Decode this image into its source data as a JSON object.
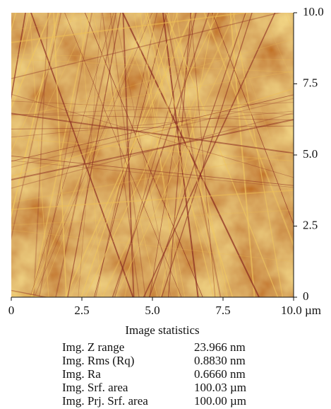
{
  "chart_data": {
    "type": "image",
    "xlim": [
      0,
      10
    ],
    "ylim": [
      0,
      10
    ],
    "xticks": [
      0,
      2.5,
      {
        "value": 5,
        "label": "5.0"
      },
      7.5,
      {
        "value": 10,
        "label": "10.0 µm"
      }
    ],
    "yticks": [
      0,
      2.5,
      {
        "value": 5,
        "label": "5.0"
      },
      7.5,
      {
        "value": 10,
        "label": "10.0"
      }
    ]
  },
  "statistics": {
    "title": "Image statistics",
    "rows": [
      [
        "Img. Z range",
        "23.966 nm"
      ],
      [
        "Img. Rms (Rq)",
        "0.8830 nm"
      ],
      [
        "Img. Ra",
        "0.6660 nm"
      ],
      [
        "Img. Srf. area",
        "100.03 µm"
      ],
      [
        "Img. Prj. Srf. area",
        "100.00 µm"
      ]
    ]
  }
}
